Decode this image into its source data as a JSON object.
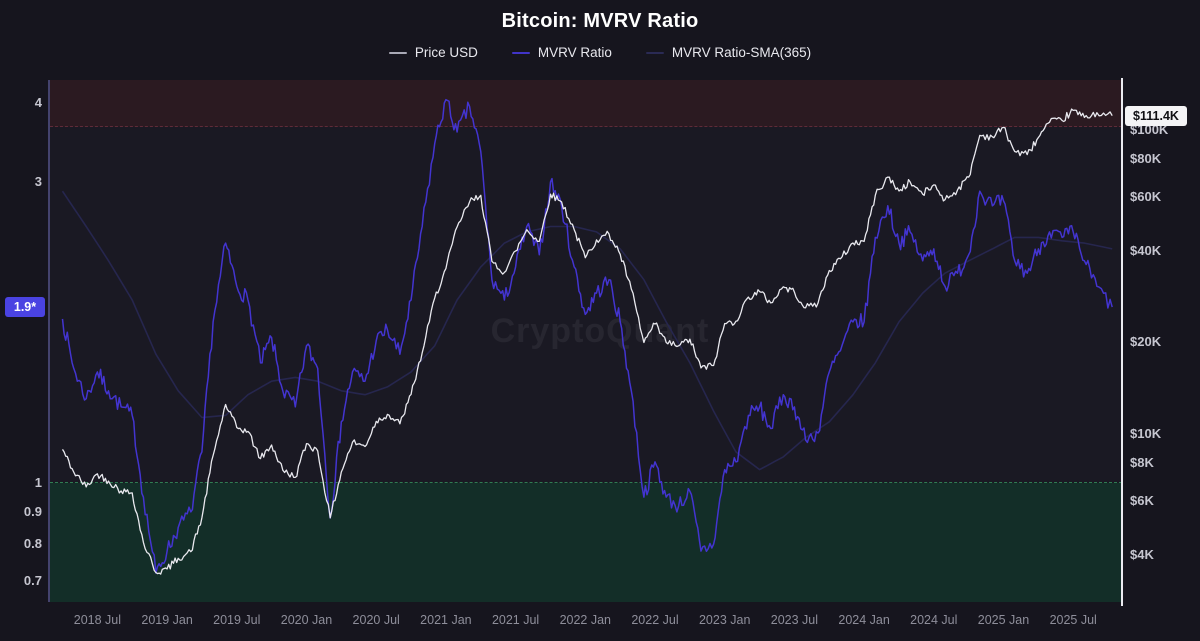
{
  "header": {
    "title": "Bitcoin: MVRV Ratio"
  },
  "legend": [
    {
      "label": "Price USD",
      "color": "#a9a9b6"
    },
    {
      "label": "MVRV Ratio",
      "color": "#4134c8"
    },
    {
      "label": "MVRV Ratio-SMA(365)",
      "color": "#2a2a54"
    }
  ],
  "watermark": "CryptoQuant",
  "badges": {
    "mvrv_current_label": "1.9*",
    "mvrv_current_value": 1.9,
    "price_current_label": "$111.4K",
    "price_current_value": 111400
  },
  "colors": {
    "background": "#16151e",
    "plot_background": "#1a1923",
    "price_line": "#e9e9ef",
    "mvrv_line": "#4334d0",
    "sma_line": "#26264e",
    "overvalued_fill": "#2b1a21",
    "overvalued_line": "#5f2b39",
    "undervalued_fill": "#132e28",
    "undervalued_line": "#2f7c52",
    "left_axis_line": "#44436e",
    "right_axis_line": "#ebebf1",
    "mvrv_badge": "#4a43e2",
    "price_badge": "#f4f4f6"
  },
  "chart_data": {
    "type": "line",
    "title": "Bitcoin: MVRV Ratio",
    "x_domain": [
      2018.16,
      2025.85
    ],
    "x_ticks": [
      {
        "label": "2018 Jul",
        "t": 2018.5
      },
      {
        "label": "2019 Jan",
        "t": 2019.0
      },
      {
        "label": "2019 Jul",
        "t": 2019.5
      },
      {
        "label": "2020 Jan",
        "t": 2020.0
      },
      {
        "label": "2020 Jul",
        "t": 2020.5
      },
      {
        "label": "2021 Jan",
        "t": 2021.0
      },
      {
        "label": "2021 Jul",
        "t": 2021.5
      },
      {
        "label": "2022 Jan",
        "t": 2022.0
      },
      {
        "label": "2022 Jul",
        "t": 2022.5
      },
      {
        "label": "2023 Jan",
        "t": 2023.0
      },
      {
        "label": "2023 Jul",
        "t": 2023.5
      },
      {
        "label": "2024 Jan",
        "t": 2024.0
      },
      {
        "label": "2024 Jul",
        "t": 2024.5
      },
      {
        "label": "2025 Jan",
        "t": 2025.0
      },
      {
        "label": "2025 Jul",
        "t": 2025.5
      }
    ],
    "left_axis": {
      "name": "MVRV Ratio",
      "scale": "log",
      "ticks": [
        {
          "label": "4",
          "v": 4.0
        },
        {
          "label": "3",
          "v": 3.0
        },
        {
          "label": "1",
          "v": 1.0
        },
        {
          "label": "0.9",
          "v": 0.9
        },
        {
          "label": "0.8",
          "v": 0.8
        },
        {
          "label": "0.7",
          "v": 0.7
        }
      ]
    },
    "right_axis": {
      "name": "Price USD",
      "scale": "log",
      "ticks": [
        {
          "label": "$100K",
          "v": 100000
        },
        {
          "label": "$80K",
          "v": 80000
        },
        {
          "label": "$60K",
          "v": 60000
        },
        {
          "label": "$40K",
          "v": 40000
        },
        {
          "label": "$20K",
          "v": 20000
        },
        {
          "label": "$10K",
          "v": 10000
        },
        {
          "label": "$8K",
          "v": 8000
        },
        {
          "label": "$6K",
          "v": 6000
        },
        {
          "label": "$4K",
          "v": 4000
        }
      ]
    },
    "zones": {
      "overvalued": {
        "threshold": 3.67,
        "axis": "left"
      },
      "undervalued": {
        "threshold": 1.0,
        "axis": "left"
      }
    },
    "series": [
      {
        "name": "MVRV Ratio-SMA(365)",
        "axis": "left",
        "width": 1.6,
        "noise": 0,
        "seed": 3,
        "points": [
          [
            2018.25,
            2.9
          ],
          [
            2018.42,
            2.55
          ],
          [
            2018.58,
            2.25
          ],
          [
            2018.75,
            1.95
          ],
          [
            2018.92,
            1.6
          ],
          [
            2019.08,
            1.4
          ],
          [
            2019.25,
            1.27
          ],
          [
            2019.42,
            1.28
          ],
          [
            2019.58,
            1.38
          ],
          [
            2019.75,
            1.45
          ],
          [
            2019.92,
            1.47
          ],
          [
            2020.08,
            1.45
          ],
          [
            2020.25,
            1.4
          ],
          [
            2020.42,
            1.38
          ],
          [
            2020.58,
            1.42
          ],
          [
            2020.75,
            1.5
          ],
          [
            2020.92,
            1.65
          ],
          [
            2021.08,
            1.95
          ],
          [
            2021.25,
            2.2
          ],
          [
            2021.42,
            2.4
          ],
          [
            2021.58,
            2.5
          ],
          [
            2021.75,
            2.55
          ],
          [
            2021.92,
            2.55
          ],
          [
            2022.08,
            2.5
          ],
          [
            2022.25,
            2.35
          ],
          [
            2022.42,
            2.1
          ],
          [
            2022.58,
            1.8
          ],
          [
            2022.75,
            1.55
          ],
          [
            2022.92,
            1.3
          ],
          [
            2023.08,
            1.12
          ],
          [
            2023.25,
            1.05
          ],
          [
            2023.42,
            1.1
          ],
          [
            2023.58,
            1.18
          ],
          [
            2023.75,
            1.25
          ],
          [
            2023.92,
            1.38
          ],
          [
            2024.08,
            1.55
          ],
          [
            2024.25,
            1.8
          ],
          [
            2024.42,
            2.0
          ],
          [
            2024.58,
            2.15
          ],
          [
            2024.75,
            2.25
          ],
          [
            2024.92,
            2.35
          ],
          [
            2025.08,
            2.45
          ],
          [
            2025.25,
            2.45
          ],
          [
            2025.42,
            2.42
          ],
          [
            2025.58,
            2.4
          ],
          [
            2025.78,
            2.35
          ]
        ]
      },
      {
        "name": "MVRV Ratio",
        "axis": "left",
        "width": 1.5,
        "noise": 0.013,
        "seed": 7,
        "points": [
          [
            2018.25,
            1.82
          ],
          [
            2018.33,
            1.52
          ],
          [
            2018.42,
            1.36
          ],
          [
            2018.5,
            1.5
          ],
          [
            2018.58,
            1.4
          ],
          [
            2018.67,
            1.32
          ],
          [
            2018.75,
            1.28
          ],
          [
            2018.83,
            0.95
          ],
          [
            2018.92,
            0.72
          ],
          [
            2019.0,
            0.78
          ],
          [
            2019.08,
            0.85
          ],
          [
            2019.17,
            0.9
          ],
          [
            2019.25,
            1.12
          ],
          [
            2019.33,
            1.8
          ],
          [
            2019.42,
            2.4
          ],
          [
            2019.5,
            2.05
          ],
          [
            2019.58,
            1.95
          ],
          [
            2019.67,
            1.55
          ],
          [
            2019.75,
            1.7
          ],
          [
            2019.83,
            1.4
          ],
          [
            2019.92,
            1.32
          ],
          [
            2020.0,
            1.65
          ],
          [
            2020.08,
            1.52
          ],
          [
            2020.17,
            0.88
          ],
          [
            2020.25,
            1.25
          ],
          [
            2020.33,
            1.5
          ],
          [
            2020.42,
            1.45
          ],
          [
            2020.5,
            1.68
          ],
          [
            2020.58,
            1.75
          ],
          [
            2020.67,
            1.6
          ],
          [
            2020.75,
            1.95
          ],
          [
            2020.83,
            2.55
          ],
          [
            2020.92,
            3.45
          ],
          [
            2021.0,
            4.05
          ],
          [
            2021.08,
            3.6
          ],
          [
            2021.17,
            3.95
          ],
          [
            2021.25,
            3.35
          ],
          [
            2021.33,
            2.1
          ],
          [
            2021.42,
            1.95
          ],
          [
            2021.5,
            2.2
          ],
          [
            2021.58,
            2.55
          ],
          [
            2021.67,
            2.3
          ],
          [
            2021.75,
            3.0
          ],
          [
            2021.83,
            2.75
          ],
          [
            2021.92,
            2.2
          ],
          [
            2022.0,
            1.85
          ],
          [
            2022.08,
            2.0
          ],
          [
            2022.17,
            2.1
          ],
          [
            2022.25,
            1.8
          ],
          [
            2022.33,
            1.4
          ],
          [
            2022.42,
            0.95
          ],
          [
            2022.5,
            1.08
          ],
          [
            2022.58,
            0.95
          ],
          [
            2022.67,
            0.92
          ],
          [
            2022.75,
            0.97
          ],
          [
            2022.83,
            0.78
          ],
          [
            2022.92,
            0.8
          ],
          [
            2023.0,
            1.05
          ],
          [
            2023.08,
            1.08
          ],
          [
            2023.17,
            1.28
          ],
          [
            2023.25,
            1.32
          ],
          [
            2023.33,
            1.22
          ],
          [
            2023.42,
            1.38
          ],
          [
            2023.5,
            1.32
          ],
          [
            2023.58,
            1.17
          ],
          [
            2023.67,
            1.2
          ],
          [
            2023.75,
            1.5
          ],
          [
            2023.83,
            1.62
          ],
          [
            2023.92,
            1.8
          ],
          [
            2024.0,
            1.8
          ],
          [
            2024.08,
            2.45
          ],
          [
            2024.17,
            2.75
          ],
          [
            2024.25,
            2.4
          ],
          [
            2024.33,
            2.5
          ],
          [
            2024.42,
            2.25
          ],
          [
            2024.5,
            2.35
          ],
          [
            2024.58,
            2.05
          ],
          [
            2024.67,
            2.15
          ],
          [
            2024.75,
            2.3
          ],
          [
            2024.83,
            2.9
          ],
          [
            2024.92,
            2.75
          ],
          [
            2025.0,
            2.8
          ],
          [
            2025.08,
            2.25
          ],
          [
            2025.17,
            2.15
          ],
          [
            2025.25,
            2.35
          ],
          [
            2025.33,
            2.5
          ],
          [
            2025.42,
            2.45
          ],
          [
            2025.5,
            2.5
          ],
          [
            2025.58,
            2.25
          ],
          [
            2025.67,
            2.05
          ],
          [
            2025.78,
            1.9
          ]
        ]
      },
      {
        "name": "Price USD",
        "axis": "right",
        "width": 1.3,
        "noise": 0.012,
        "seed": 42,
        "points": [
          [
            2018.25,
            8900
          ],
          [
            2018.33,
            7500
          ],
          [
            2018.42,
            6700
          ],
          [
            2018.5,
            7400
          ],
          [
            2018.58,
            7000
          ],
          [
            2018.67,
            6500
          ],
          [
            2018.75,
            6400
          ],
          [
            2018.83,
            4400
          ],
          [
            2018.92,
            3500
          ],
          [
            2019.0,
            3600
          ],
          [
            2019.08,
            3900
          ],
          [
            2019.17,
            4100
          ],
          [
            2019.25,
            5300
          ],
          [
            2019.33,
            8500
          ],
          [
            2019.42,
            12500
          ],
          [
            2019.5,
            10500
          ],
          [
            2019.58,
            10200
          ],
          [
            2019.67,
            8300
          ],
          [
            2019.75,
            9200
          ],
          [
            2019.83,
            7600
          ],
          [
            2019.92,
            7200
          ],
          [
            2020.0,
            9300
          ],
          [
            2020.08,
            8800
          ],
          [
            2020.17,
            5300
          ],
          [
            2020.25,
            7500
          ],
          [
            2020.33,
            9400
          ],
          [
            2020.42,
            9100
          ],
          [
            2020.5,
            11000
          ],
          [
            2020.58,
            11600
          ],
          [
            2020.67,
            10800
          ],
          [
            2020.75,
            13500
          ],
          [
            2020.83,
            18500
          ],
          [
            2020.92,
            28000
          ],
          [
            2021.0,
            35000
          ],
          [
            2021.08,
            48000
          ],
          [
            2021.17,
            58000
          ],
          [
            2021.25,
            61000
          ],
          [
            2021.33,
            37000
          ],
          [
            2021.42,
            34000
          ],
          [
            2021.5,
            40000
          ],
          [
            2021.58,
            47000
          ],
          [
            2021.67,
            43000
          ],
          [
            2021.75,
            61500
          ],
          [
            2021.83,
            58000
          ],
          [
            2021.92,
            47000
          ],
          [
            2022.0,
            38000
          ],
          [
            2022.08,
            43500
          ],
          [
            2022.17,
            45500
          ],
          [
            2022.25,
            39000
          ],
          [
            2022.33,
            30000
          ],
          [
            2022.42,
            20000
          ],
          [
            2022.5,
            23000
          ],
          [
            2022.58,
            20000
          ],
          [
            2022.67,
            19500
          ],
          [
            2022.75,
            20500
          ],
          [
            2022.83,
            16500
          ],
          [
            2022.92,
            16800
          ],
          [
            2023.0,
            23100
          ],
          [
            2023.08,
            23500
          ],
          [
            2023.17,
            28200
          ],
          [
            2023.25,
            29400
          ],
          [
            2023.33,
            27000
          ],
          [
            2023.42,
            30500
          ],
          [
            2023.5,
            29300
          ],
          [
            2023.58,
            26000
          ],
          [
            2023.67,
            27000
          ],
          [
            2023.75,
            34500
          ],
          [
            2023.83,
            37700
          ],
          [
            2023.92,
            42500
          ],
          [
            2024.0,
            43000
          ],
          [
            2024.08,
            61000
          ],
          [
            2024.17,
            70000
          ],
          [
            2024.25,
            63000
          ],
          [
            2024.33,
            67500
          ],
          [
            2024.42,
            61500
          ],
          [
            2024.5,
            66000
          ],
          [
            2024.58,
            59000
          ],
          [
            2024.67,
            63500
          ],
          [
            2024.75,
            70000
          ],
          [
            2024.83,
            96000
          ],
          [
            2024.92,
            95000
          ],
          [
            2025.0,
            102000
          ],
          [
            2025.08,
            85000
          ],
          [
            2025.17,
            83000
          ],
          [
            2025.25,
            94500
          ],
          [
            2025.33,
            106000
          ],
          [
            2025.42,
            107500
          ],
          [
            2025.5,
            116000
          ],
          [
            2025.58,
            110000
          ],
          [
            2025.67,
            114000
          ],
          [
            2025.78,
            111400
          ]
        ]
      }
    ]
  }
}
